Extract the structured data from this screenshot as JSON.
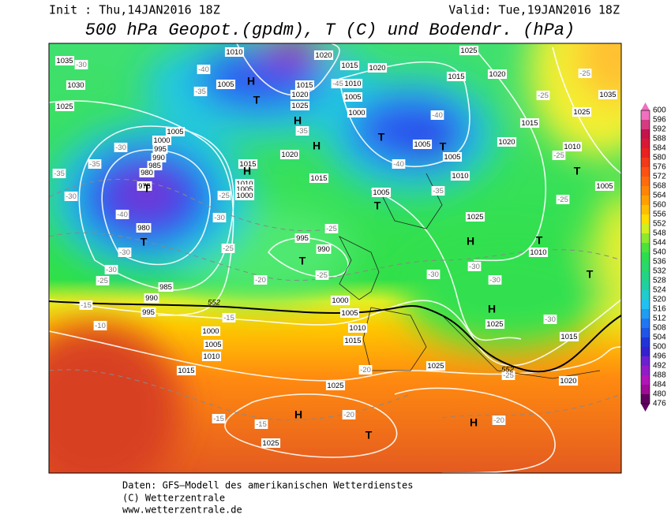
{
  "header": {
    "init": "Init : Thu,14JAN2016 18Z",
    "valid": "Valid: Tue,19JAN2016 18Z",
    "title": "500 hPa Geopot.(gpdm), T (C) und Bodendr. (hPa)"
  },
  "isobar_labels": [
    "1035",
    "1030",
    "1025",
    "1010",
    "1020",
    "1015",
    "1020",
    "1025",
    "1015",
    "1020",
    "1005",
    "1015",
    "1010",
    "1005",
    "1020",
    "1025",
    "1000",
    "1015",
    "1025",
    "1035",
    "1005",
    "1000",
    "995",
    "990",
    "985",
    "980",
    "975",
    "980",
    "1005",
    "1005",
    "1020",
    "1010",
    "1020",
    "1015",
    "1010",
    "1005",
    "1000",
    "1015",
    "1010",
    "1005",
    "1005",
    "1025",
    "995",
    "990",
    "1010",
    "985",
    "990",
    "995",
    "1000",
    "1005",
    "1010",
    "1015",
    "1000",
    "1005",
    "1010",
    "1015",
    "1025",
    "1015",
    "1025",
    "1020",
    "1025",
    "1025"
  ],
  "temp_labels": [
    "-30",
    "-40",
    "-35",
    "-30",
    "-35",
    "-35",
    "-30",
    "-40",
    "-30",
    "-30",
    "-25",
    "-15",
    "-10",
    "-25",
    "-30",
    "-25",
    "-20",
    "-25",
    "-25",
    "-15",
    "-20",
    "-20",
    "-15",
    "-15",
    "-20",
    "-25",
    "-30",
    "-30",
    "-30",
    "-30",
    "-25",
    "-25",
    "-25",
    "-25",
    "-35",
    "-40",
    "-40",
    "-35",
    "-45"
  ],
  "geopot_labels": [
    "552",
    "552"
  ],
  "centers": [
    "H",
    "T",
    "H",
    "H",
    "T",
    "T",
    "H",
    "T",
    "T",
    "T",
    "T",
    "H",
    "T",
    "T",
    "T",
    "H",
    "H",
    "T",
    "H"
  ],
  "colorbar": {
    "ticks": [
      600,
      596,
      592,
      588,
      584,
      580,
      576,
      572,
      568,
      564,
      560,
      556,
      552,
      548,
      544,
      540,
      536,
      532,
      528,
      524,
      520,
      516,
      512,
      508,
      504,
      500,
      496,
      492,
      488,
      484,
      480,
      476
    ]
  },
  "footer": {
    "source": "Daten: GFS–Modell des amerikanischen Wetterdienstes",
    "copyright": "(C) Wetterzentrale",
    "url": "www.wetterzentrale.de"
  }
}
